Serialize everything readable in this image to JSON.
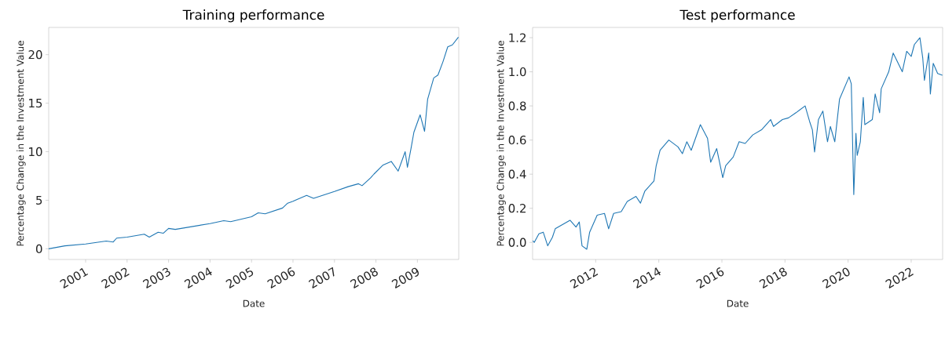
{
  "chart_data": [
    {
      "type": "line",
      "title": "Training performance",
      "xlabel": "Date",
      "ylabel": "Percentage Change in the Investment Value",
      "xlim": [
        "2000-02-10",
        "2009-12-31"
      ],
      "ylim": [
        -1.1,
        22.8
      ],
      "xticks": [
        "2001",
        "2002",
        "2003",
        "2004",
        "2005",
        "2006",
        "2007",
        "2008",
        "2009"
      ],
      "yticks": [
        0,
        5,
        10,
        15,
        20
      ],
      "x": [
        "2000-02-10",
        "2000-07-01",
        "2001-01-01",
        "2001-07-01",
        "2001-09-01",
        "2001-10-01",
        "2002-01-01",
        "2002-06-01",
        "2002-07-15",
        "2002-10-01",
        "2002-11-15",
        "2003-01-01",
        "2003-03-01",
        "2004-01-01",
        "2004-05-01",
        "2004-07-01",
        "2005-01-01",
        "2005-03-01",
        "2005-05-01",
        "2005-10-01",
        "2005-11-15",
        "2006-01-01",
        "2006-05-01",
        "2006-07-01",
        "2007-01-01",
        "2007-05-01",
        "2007-08-01",
        "2007-09-01",
        "2007-11-15",
        "2007-12-15",
        "2008-03-01",
        "2008-05-15",
        "2008-07-15",
        "2008-09-15",
        "2008-10-05",
        "2008-11-05",
        "2008-12-01",
        "2009-01-25",
        "2009-03-05",
        "2009-04-01",
        "2009-05-25",
        "2009-07-01",
        "2009-08-15",
        "2009-09-25",
        "2009-11-05",
        "2009-12-28"
      ],
      "series": [
        {
          "color": "#1f77b4",
          "values": [
            0.0,
            0.3,
            0.5,
            0.8,
            0.7,
            1.1,
            1.2,
            1.5,
            1.2,
            1.7,
            1.6,
            2.1,
            2.0,
            2.6,
            2.9,
            2.8,
            3.3,
            3.7,
            3.6,
            4.2,
            4.7,
            4.9,
            5.5,
            5.2,
            5.9,
            6.4,
            6.7,
            6.5,
            7.3,
            7.7,
            8.6,
            9.0,
            8.0,
            10.0,
            8.4,
            10.3,
            12.0,
            13.8,
            12.1,
            15.4,
            17.6,
            17.9,
            19.3,
            20.8,
            21.0,
            21.8
          ]
        }
      ]
    },
    {
      "type": "line",
      "title": "Test performance",
      "xlabel": "Date",
      "ylabel": "Percentage Change in the Investment Value",
      "xlim": [
        "2010-01-01",
        "2022-12-31"
      ],
      "ylim": [
        -0.1,
        1.26
      ],
      "xticks": [
        "2012",
        "2014",
        "2016",
        "2018",
        "2020",
        "2022"
      ],
      "yticks": [
        {
          "value": 0,
          "label": "0.0"
        },
        0.2,
        0.4,
        0.6,
        0.8,
        {
          "value": 1,
          "label": "1.0"
        },
        1.2
      ],
      "x": [
        "2010-01-04",
        "2010-01-20",
        "2010-03-15",
        "2010-05-04",
        "2010-06-25",
        "2010-08-18",
        "2010-09-20",
        "2011-03-10",
        "2011-05-18",
        "2011-06-25",
        "2011-07-27",
        "2011-09-20",
        "2011-10-23",
        "2012-01-18",
        "2012-04-12",
        "2012-05-30",
        "2012-07-27",
        "2012-10-23",
        "2013-01-01",
        "2013-04-12",
        "2013-06-03",
        "2013-07-23",
        "2013-11-06",
        "2013-12-02",
        "2014-01-16",
        "2014-04-27",
        "2014-08-11",
        "2014-10-01",
        "2014-11-21",
        "2015-01-11",
        "2015-04-27",
        "2015-07-19",
        "2015-08-24",
        "2015-11-02",
        "2016-01-11",
        "2016-02-14",
        "2016-05-11",
        "2016-07-19",
        "2016-09-27",
        "2016-12-24",
        "2017-04-05",
        "2017-07-19",
        "2017-08-21",
        "2017-12-02",
        "2018-02-10",
        "2018-05-08",
        "2018-08-22",
        "2018-10-12",
        "2018-11-14",
        "2018-12-09",
        "2019-01-23",
        "2019-03-15",
        "2019-05-08",
        "2019-06-10",
        "2019-07-31",
        "2019-09-24",
        "2020-01-12",
        "2020-02-07",
        "2020-03-07",
        "2020-04-01",
        "2020-04-16",
        "2020-05-22",
        "2020-06-25",
        "2020-07-13",
        "2020-10-08",
        "2020-11-10",
        "2021-01-01",
        "2021-01-19",
        "2021-04-16",
        "2021-06-07",
        "2021-09-20",
        "2021-11-10",
        "2022-01-01",
        "2022-02-07",
        "2022-04-12",
        "2022-05-15",
        "2022-06-03",
        "2022-07-23",
        "2022-08-11",
        "2022-09-13",
        "2022-11-03",
        "2022-12-28"
      ],
      "series": [
        {
          "color": "#1f77b4",
          "values": [
            0.01,
            0.0,
            0.05,
            0.06,
            -0.02,
            0.03,
            0.08,
            0.13,
            0.09,
            0.12,
            -0.02,
            -0.04,
            0.06,
            0.16,
            0.17,
            0.08,
            0.17,
            0.18,
            0.24,
            0.27,
            0.23,
            0.3,
            0.36,
            0.45,
            0.54,
            0.6,
            0.56,
            0.52,
            0.59,
            0.54,
            0.69,
            0.61,
            0.47,
            0.55,
            0.38,
            0.45,
            0.5,
            0.59,
            0.58,
            0.63,
            0.66,
            0.72,
            0.68,
            0.72,
            0.73,
            0.76,
            0.8,
            0.71,
            0.66,
            0.53,
            0.72,
            0.77,
            0.59,
            0.68,
            0.59,
            0.84,
            0.97,
            0.93,
            0.28,
            0.64,
            0.51,
            0.59,
            0.85,
            0.69,
            0.72,
            0.87,
            0.76,
            0.9,
            1.0,
            1.11,
            1.0,
            1.12,
            1.09,
            1.16,
            1.2,
            1.08,
            0.95,
            1.11,
            0.87,
            1.05,
            0.99,
            0.98
          ]
        }
      ]
    }
  ]
}
